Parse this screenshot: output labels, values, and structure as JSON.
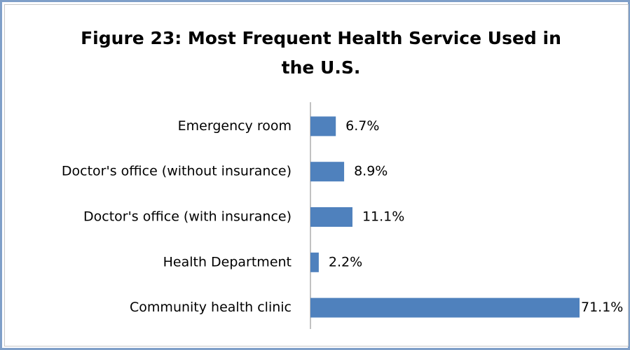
{
  "chart_data": {
    "type": "bar",
    "orientation": "horizontal",
    "title": "Figure 23: Most Frequent Health Service Used in the U.S.",
    "categories": [
      "Emergency room",
      "Doctor's office (without insurance)",
      "Doctor's office (with insurance)",
      "Health Department",
      "Community health clinic"
    ],
    "values": [
      6.7,
      8.9,
      11.1,
      2.2,
      71.1
    ],
    "value_labels": [
      "6.7%",
      "8.9%",
      "11.1%",
      "2.2%",
      "71.1%"
    ],
    "color": "#4f81bd"
  }
}
